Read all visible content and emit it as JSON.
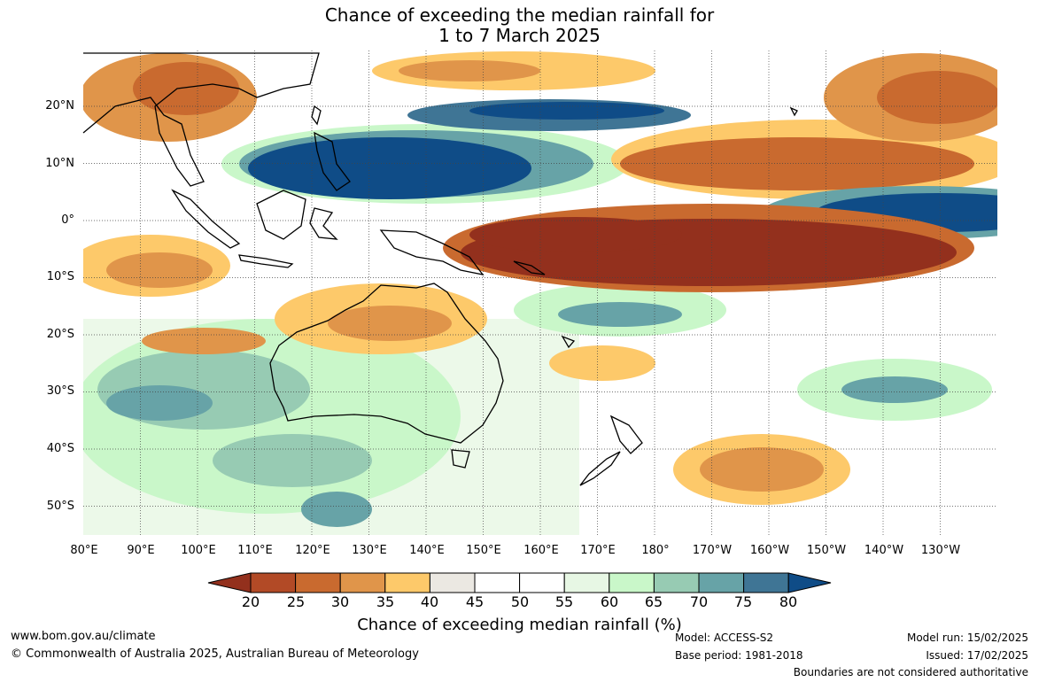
{
  "title": {
    "line1": "Chance of exceeding the median rainfall for",
    "line2": "1 to 7 March 2025"
  },
  "axes": {
    "lat_labels": [
      "20°N",
      "10°N",
      "0°",
      "10°S",
      "20°S",
      "30°S",
      "40°S",
      "50°S"
    ],
    "lon_labels": [
      "80°E",
      "90°E",
      "100°E",
      "110°E",
      "120°E",
      "130°E",
      "140°E",
      "150°E",
      "160°E",
      "170°E",
      "180°",
      "170°W",
      "160°W",
      "150°W",
      "140°W",
      "130°W"
    ],
    "lat_range": [
      -55,
      30
    ],
    "lon_range": [
      80,
      240
    ]
  },
  "colorbar": {
    "title": "Chance of exceeding median rainfall (%)",
    "ticks": [
      "20",
      "25",
      "30",
      "35",
      "40",
      "45",
      "50",
      "55",
      "60",
      "65",
      "70",
      "75",
      "80"
    ],
    "colors": [
      "#93301d",
      "#b24a26",
      "#c96a2f",
      "#e0954a",
      "#fdc96a",
      "#ebe8e2",
      "#ffffff",
      "#ffffff",
      "#e7f7e4",
      "#c9f7c9",
      "#97cbb3",
      "#67a3a7",
      "#3f7595",
      "#0f4c87"
    ]
  },
  "footer": {
    "url": "www.bom.gov.au/climate",
    "copyright": "© Commonwealth of Australia 2025, Australian Bureau of Meteorology",
    "model": "Model: ACCESS-S2",
    "base_period": "Base period: 1981-2018",
    "model_run": "Model run: 15/02/2025",
    "issued": "Issued: 17/02/2025",
    "boundaries": "Boundaries are not considered authoritative"
  }
}
